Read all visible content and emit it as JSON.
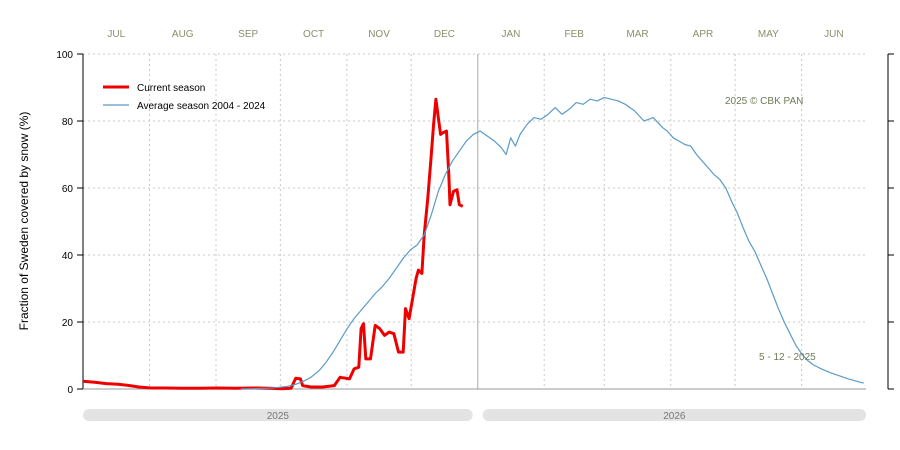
{
  "chart_data": {
    "type": "line",
    "ylabel": "Fraction of  Sweden  covered by snow (%)",
    "ylim": [
      0,
      100
    ],
    "y_ticks": [
      "0",
      "20",
      "40",
      "60",
      "80",
      "100"
    ],
    "months": [
      "JUL",
      "AUG",
      "SEP",
      "OCT",
      "NOV",
      "DEC",
      "JAN",
      "FEB",
      "MAR",
      "APR",
      "MAY",
      "JUN"
    ],
    "years": [
      "2025",
      "2026"
    ],
    "copyright": "2025  © CBK PAN",
    "date_note": "5 - 12 - 2025",
    "legend_position": "top-left",
    "grid": true,
    "series": [
      {
        "name": "Current season",
        "color": "#ee0000",
        "points": [
          [
            0,
            2.3
          ],
          [
            10,
            2.0
          ],
          [
            20,
            1.6
          ],
          [
            30,
            1.4
          ],
          [
            40,
            1.0
          ],
          [
            48,
            0.6
          ],
          [
            58,
            0.3
          ],
          [
            70,
            0.3
          ],
          [
            85,
            0.2
          ],
          [
            100,
            0.2
          ],
          [
            115,
            0.3
          ],
          [
            130,
            0.2
          ],
          [
            148,
            0.3
          ],
          [
            160,
            0.2
          ],
          [
            170,
            0.1
          ],
          [
            178,
            0.2
          ],
          [
            182,
            3.2
          ],
          [
            186,
            3.0
          ],
          [
            188,
            1.0
          ],
          [
            195,
            0.6
          ],
          [
            205,
            0.6
          ],
          [
            215,
            1.0
          ],
          [
            220,
            3.5
          ],
          [
            228,
            3.0
          ],
          [
            232,
            6.0
          ],
          [
            236,
            6.5
          ],
          [
            238,
            18.0
          ],
          [
            240,
            19.5
          ],
          [
            242,
            9.0
          ],
          [
            246,
            9.0
          ],
          [
            250,
            19.0
          ],
          [
            254,
            18.0
          ],
          [
            258,
            16.0
          ],
          [
            262,
            17.0
          ],
          [
            266,
            16.5
          ],
          [
            270,
            11.0
          ],
          [
            274,
            11.0
          ],
          [
            276,
            24.0
          ],
          [
            279,
            21.0
          ],
          [
            282,
            27.0
          ],
          [
            285,
            33.0
          ],
          [
            287,
            35.5
          ],
          [
            290,
            34.5
          ],
          [
            292,
            46.0
          ],
          [
            295,
            57.0
          ],
          [
            298,
            70.0
          ],
          [
            300,
            79.0
          ],
          [
            302,
            86.5
          ],
          [
            304,
            81.0
          ],
          [
            306,
            76.0
          ],
          [
            308,
            76.5
          ],
          [
            311,
            77.0
          ],
          [
            313,
            64.0
          ],
          [
            314,
            55.0
          ],
          [
            317,
            59.0
          ],
          [
            320,
            59.5
          ],
          [
            322,
            55.0
          ],
          [
            325,
            54.5
          ]
        ]
      },
      {
        "name": "Average season 2004 - 2024",
        "color": "#5b9bc8",
        "points": [
          [
            135,
            0.0
          ],
          [
            145,
            0.1
          ],
          [
            155,
            0.2
          ],
          [
            165,
            0.4
          ],
          [
            175,
            0.8
          ],
          [
            182,
            1.4
          ],
          [
            188,
            2.2
          ],
          [
            195,
            3.5
          ],
          [
            202,
            5.5
          ],
          [
            208,
            8.0
          ],
          [
            214,
            11.0
          ],
          [
            220,
            14.5
          ],
          [
            226,
            18.0
          ],
          [
            232,
            21.0
          ],
          [
            238,
            23.5
          ],
          [
            244,
            26.0
          ],
          [
            250,
            28.5
          ],
          [
            256,
            30.5
          ],
          [
            262,
            33.0
          ],
          [
            268,
            36.0
          ],
          [
            274,
            39.0
          ],
          [
            280,
            41.5
          ],
          [
            286,
            43.0
          ],
          [
            292,
            46.0
          ],
          [
            298,
            52.0
          ],
          [
            304,
            59.0
          ],
          [
            310,
            64.0
          ],
          [
            316,
            68.0
          ],
          [
            322,
            71.0
          ],
          [
            328,
            74.0
          ],
          [
            334,
            76.0
          ],
          [
            340,
            77.0
          ],
          [
            346,
            75.5
          ],
          [
            352,
            74.0
          ],
          [
            358,
            72.0
          ],
          [
            362,
            70.0
          ],
          [
            366,
            75.0
          ],
          [
            370,
            72.5
          ],
          [
            374,
            76.0
          ],
          [
            380,
            79.0
          ],
          [
            386,
            81.0
          ],
          [
            392,
            80.5
          ],
          [
            398,
            82.0
          ],
          [
            404,
            84.0
          ],
          [
            410,
            82.0
          ],
          [
            416,
            83.5
          ],
          [
            422,
            85.5
          ],
          [
            428,
            85.0
          ],
          [
            434,
            86.5
          ],
          [
            440,
            86.0
          ],
          [
            446,
            87.0
          ],
          [
            452,
            86.5
          ],
          [
            458,
            86.0
          ],
          [
            464,
            85.0
          ],
          [
            468,
            84.0
          ],
          [
            472,
            83.0
          ],
          [
            476,
            81.5
          ],
          [
            480,
            80.0
          ],
          [
            484,
            80.5
          ],
          [
            488,
            81.0
          ],
          [
            492,
            79.5
          ],
          [
            496,
            78.0
          ],
          [
            500,
            77.0
          ],
          [
            505,
            75.0
          ],
          [
            510,
            74.0
          ],
          [
            515,
            73.0
          ],
          [
            520,
            72.5
          ],
          [
            525,
            70.0
          ],
          [
            530,
            68.0
          ],
          [
            535,
            66.0
          ],
          [
            540,
            64.0
          ],
          [
            545,
            62.5
          ],
          [
            550,
            60.0
          ],
          [
            555,
            56.0
          ],
          [
            560,
            52.5
          ],
          [
            565,
            48.0
          ],
          [
            570,
            44.0
          ],
          [
            575,
            41.0
          ],
          [
            580,
            37.0
          ],
          [
            585,
            33.0
          ],
          [
            590,
            28.5
          ],
          [
            595,
            24.0
          ],
          [
            600,
            20.0
          ],
          [
            605,
            16.5
          ],
          [
            610,
            13.0
          ],
          [
            615,
            10.5
          ],
          [
            620,
            8.5
          ],
          [
            625,
            7.2
          ],
          [
            630,
            6.3
          ],
          [
            635,
            5.5
          ],
          [
            640,
            4.8
          ],
          [
            645,
            4.2
          ],
          [
            650,
            3.6
          ],
          [
            655,
            3.0
          ],
          [
            660,
            2.5
          ],
          [
            665,
            2.0
          ],
          [
            668,
            1.8
          ]
        ]
      }
    ]
  }
}
